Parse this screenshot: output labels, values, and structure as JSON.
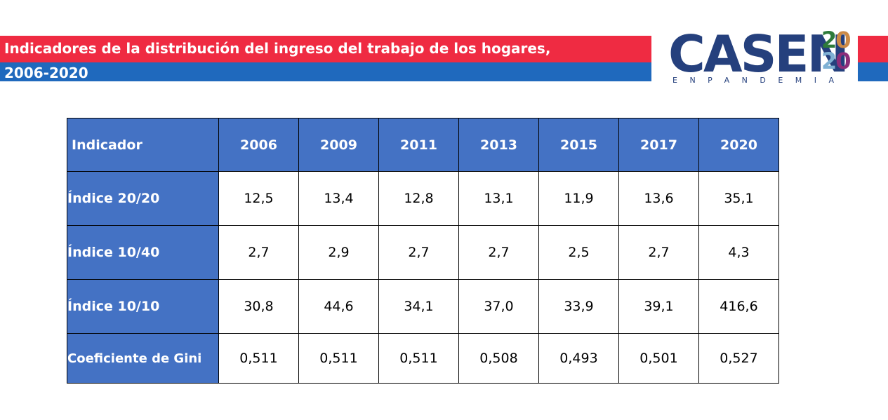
{
  "header": {
    "title_line1": "Indicadores de la distribución del ingreso del trabajo de los hogares,",
    "title_line2": "2006-2020"
  },
  "logo": {
    "main": "CASEN",
    "year_digits": [
      "2",
      "0",
      "2",
      "0"
    ],
    "subtitle": "ENPANDEMIA"
  },
  "colors": {
    "banner_red": "#ef2b42",
    "banner_blue": "#1f69bd",
    "table_header_blue": "#4472c4",
    "logo_navy": "#25407d"
  },
  "table": {
    "columns": [
      "Indicador",
      "2006",
      "2009",
      "2011",
      "2013",
      "2015",
      "2017",
      "2020"
    ],
    "rows": [
      {
        "label": "Índice 20/20",
        "values": [
          "12,5",
          "13,4",
          "12,8",
          "13,1",
          "11,9",
          "13,6",
          "35,1"
        ]
      },
      {
        "label": "Índice 10/40",
        "values": [
          "2,7",
          "2,9",
          "2,7",
          "2,7",
          "2,5",
          "2,7",
          "4,3"
        ]
      },
      {
        "label": "Índice 10/10",
        "values": [
          "30,8",
          "44,6",
          "34,1",
          "37,0",
          "33,9",
          "39,1",
          "416,6"
        ]
      },
      {
        "label": "Coeficiente de Gini",
        "values": [
          "0,511",
          "0,511",
          "0,511",
          "0,508",
          "0,493",
          "0,501",
          "0,527"
        ]
      }
    ]
  }
}
